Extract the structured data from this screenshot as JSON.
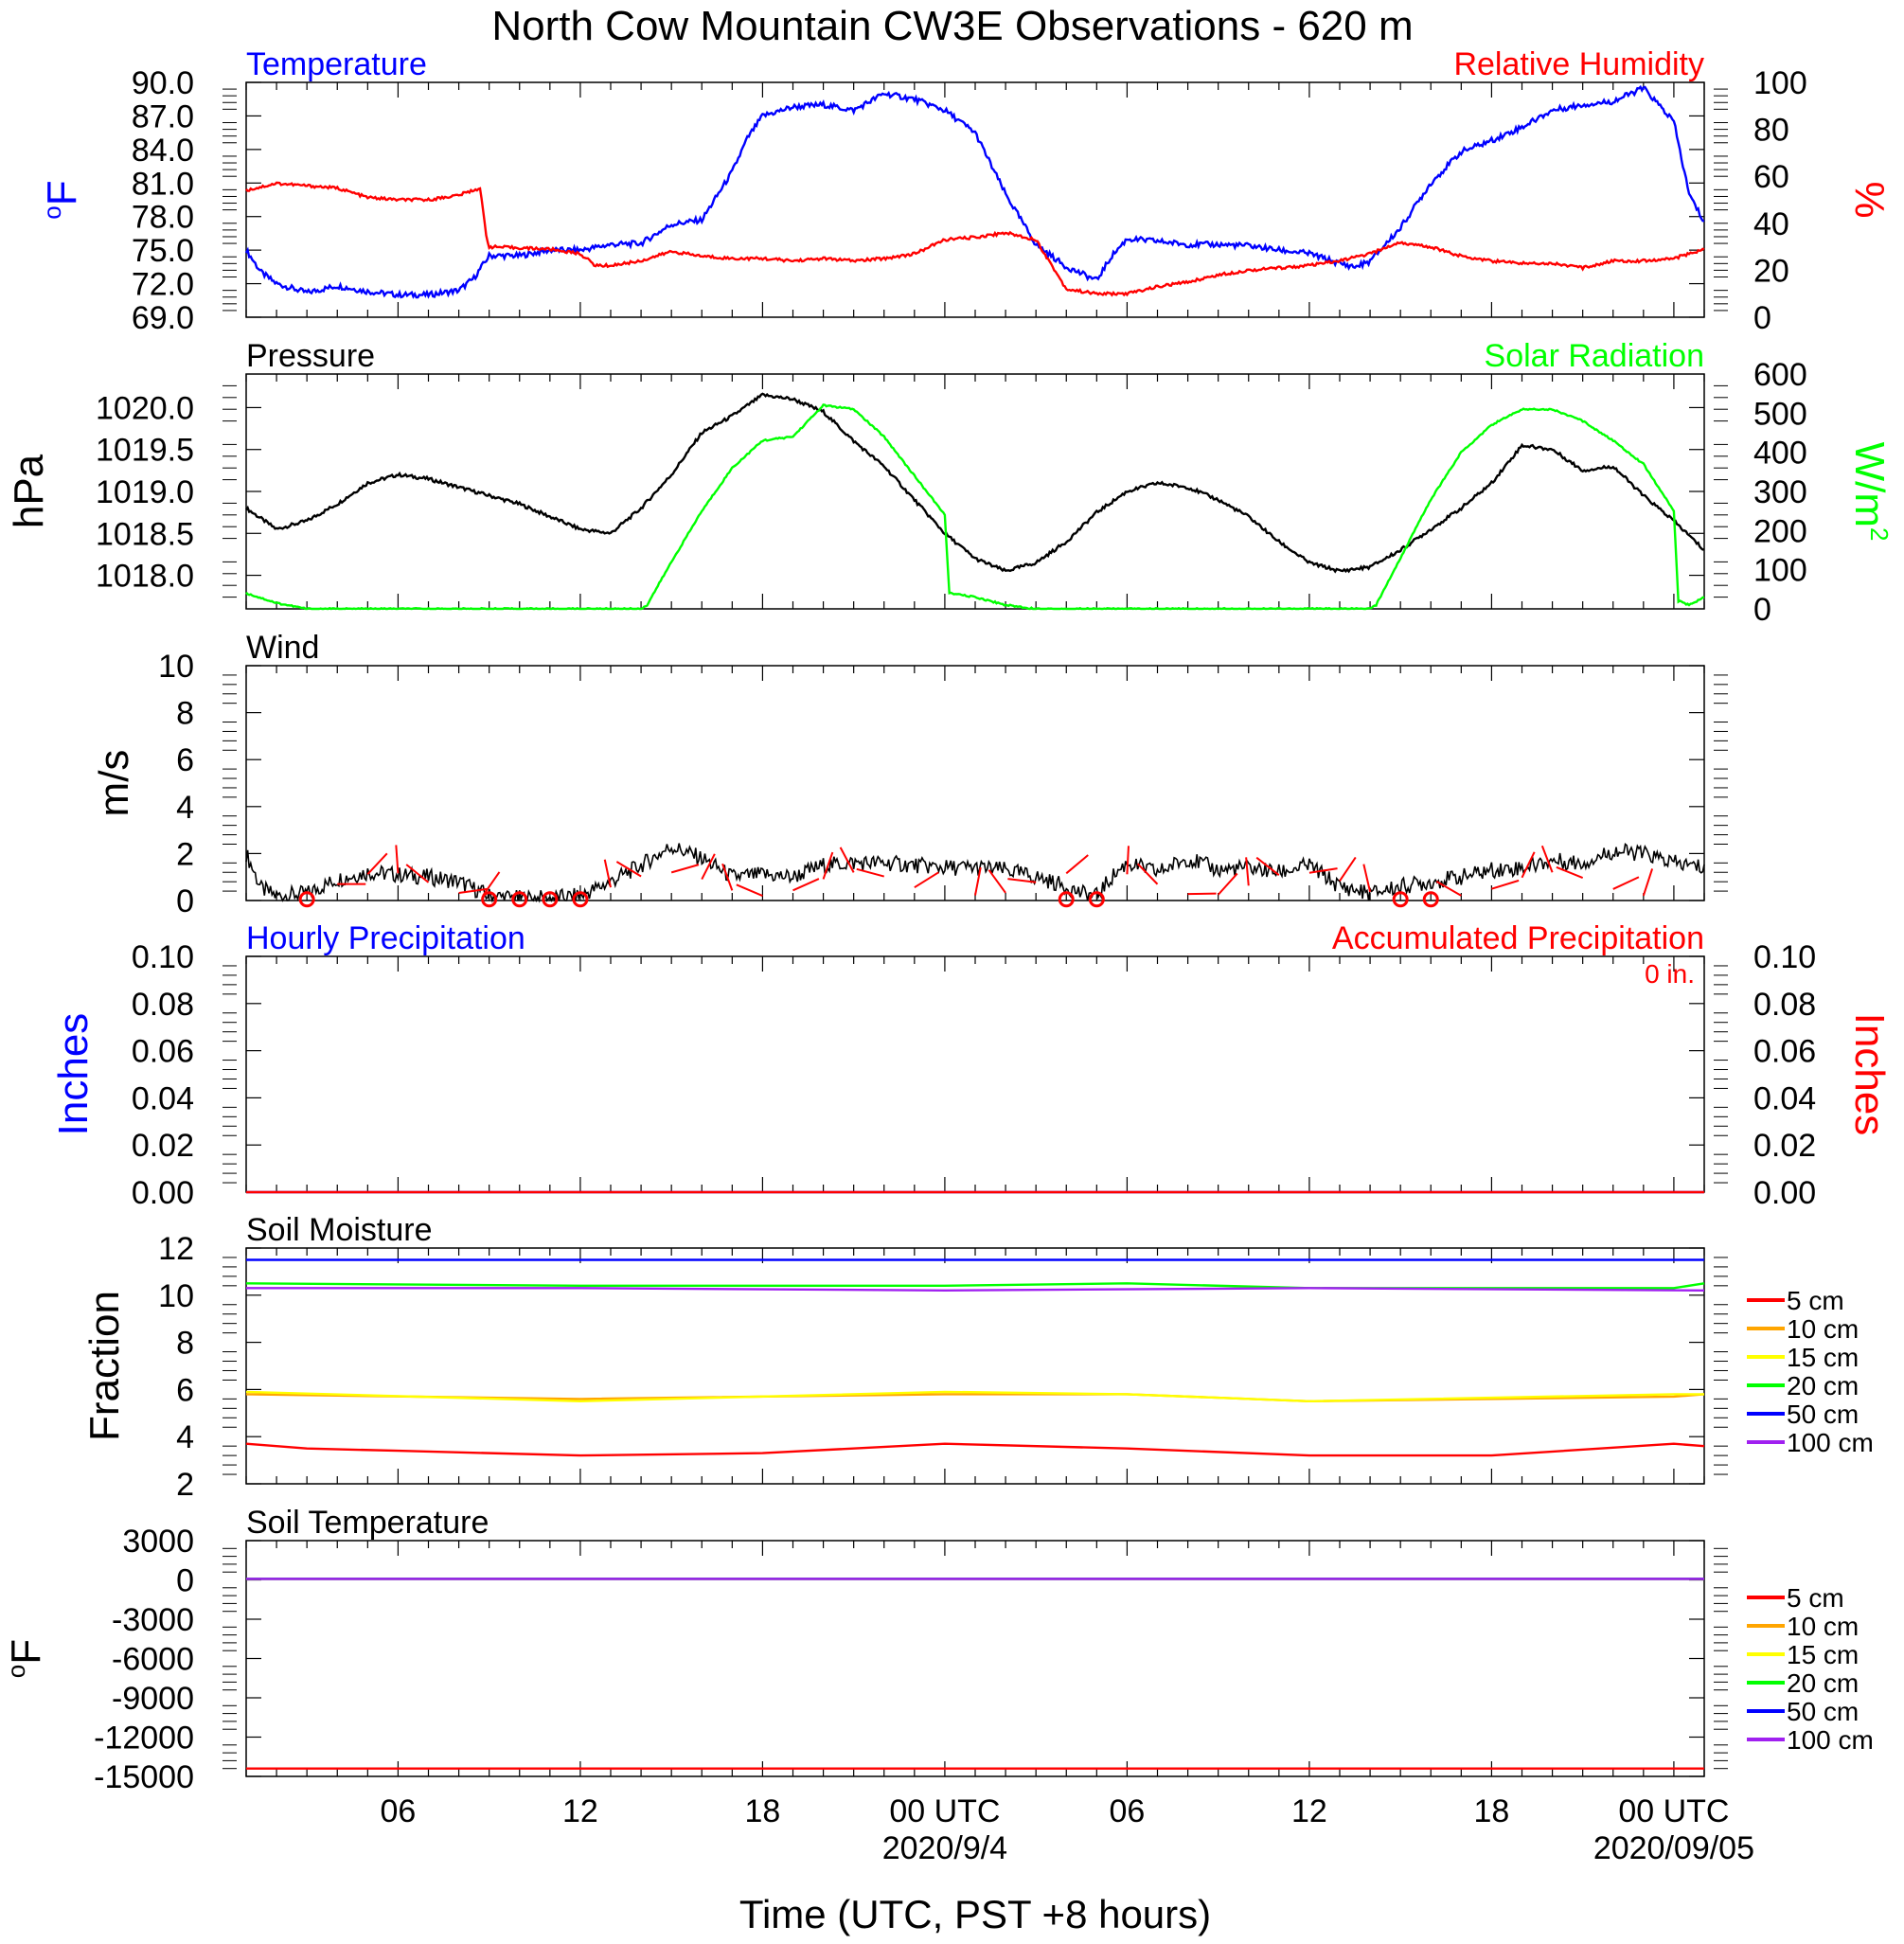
{
  "title": "North Cow Mountain CW3E Observations - 620 m",
  "time_axis": {
    "tick_labels": [
      "06",
      "12",
      "18",
      "00 UTC",
      "06",
      "12",
      "18",
      "00 UTC"
    ],
    "tick_hours": [
      6,
      12,
      18,
      24,
      30,
      36,
      42,
      48
    ],
    "date_labels": [
      {
        "text": "2020/9/4",
        "hour": 24
      },
      {
        "text": "2020/09/05",
        "hour": 48
      }
    ],
    "range_hours": [
      1,
      49
    ],
    "xlabel": "Time (UTC, PST +8 hours)"
  },
  "colors": {
    "temperature": "#0000ff",
    "humidity": "#ff0000",
    "pressure": "#000000",
    "solar": "#00ff00",
    "wind": "#000000",
    "barbs": "#ff0000",
    "precip_hourly": "#0000ff",
    "precip_accum": "#ff0000",
    "depth_5cm": "#ff0000",
    "depth_10cm": "#ffa500",
    "depth_15cm": "#ffff00",
    "depth_20cm": "#00ff00",
    "depth_50cm": "#0000ff",
    "depth_100cm": "#a020f0"
  },
  "chart_data": [
    {
      "type": "line",
      "panel": "temperature_humidity",
      "left_title": "Temperature",
      "right_title": "Relative Humidity",
      "ylabel_left": "oF",
      "ylabel_right": "%",
      "ylim_left": [
        69,
        90
      ],
      "ylim_right": [
        0,
        100
      ],
      "yticks_left": [
        "90.0",
        "87.0",
        "84.0",
        "81.0",
        "78.0",
        "75.0",
        "72.0",
        "69.0"
      ],
      "yticks_right": [
        "100",
        "80",
        "60",
        "40",
        "20",
        "0"
      ],
      "series": [
        {
          "name": "Temperature",
          "axis": "left",
          "color_key": "temperature",
          "x": [
            1,
            1.5,
            2,
            3,
            4,
            5,
            6,
            7,
            8,
            8.5,
            9,
            10,
            11,
            12,
            13,
            14,
            15,
            16,
            17,
            17.5,
            18,
            19,
            20,
            21,
            22,
            23,
            24,
            25,
            26,
            27,
            28,
            29,
            29.5,
            30,
            31,
            32,
            33,
            34,
            35,
            36,
            37,
            37.5,
            38,
            39,
            40,
            41,
            42,
            43,
            44,
            45,
            46,
            47,
            48,
            48.5,
            49
          ],
          "y": [
            75,
            73,
            72,
            71.2,
            71.8,
            71.3,
            71,
            71,
            71.4,
            72.5,
            74.5,
            74.5,
            75,
            75,
            75.5,
            75.6,
            77.3,
            77.7,
            82,
            85,
            87,
            87.8,
            88,
            87.5,
            89,
            88.5,
            87.5,
            85.5,
            80,
            75.5,
            73.5,
            72.3,
            74.5,
            76,
            75.8,
            75.5,
            75.5,
            75.4,
            75,
            74.7,
            73.8,
            73.5,
            74,
            77,
            81,
            83.8,
            84.8,
            86,
            87.5,
            88,
            88.3,
            89.5,
            86.5,
            80,
            77.5
          ]
        },
        {
          "name": "Relative Humidity",
          "axis": "right",
          "color_key": "humidity",
          "x": [
            1,
            2,
            3,
            4,
            5,
            6,
            7,
            8,
            8.7,
            8.9,
            9,
            10,
            11,
            11.5,
            12,
            12.5,
            13,
            14,
            15,
            16,
            17,
            18,
            19,
            20,
            21,
            22,
            23,
            24,
            25,
            26,
            27,
            28,
            29,
            30,
            31,
            32,
            33,
            34,
            35,
            36,
            37,
            38,
            39,
            39.3,
            40,
            41,
            42,
            43,
            44,
            45,
            46,
            47,
            48,
            49
          ],
          "y": [
            54,
            57,
            56,
            55,
            51,
            50,
            50,
            52,
            55,
            35,
            30,
            29.5,
            29,
            28,
            27,
            22,
            22,
            24,
            28,
            26,
            25,
            25,
            24,
            25,
            24,
            25,
            27,
            33,
            34,
            36,
            33,
            12,
            10,
            10,
            13,
            15,
            18,
            20,
            21,
            22,
            24,
            27,
            32,
            31,
            30,
            26,
            24,
            23,
            23,
            21,
            24,
            24,
            25,
            29
          ]
        }
      ]
    },
    {
      "type": "line",
      "panel": "pressure_solar",
      "left_title": "Pressure",
      "right_title": "Solar Radiation",
      "ylabel_left": "hPa",
      "ylabel_right": "W/m2",
      "ylim_left": [
        1017.6,
        1020.4
      ],
      "ylim_right": [
        0,
        600
      ],
      "yticks_left": [
        "1020.0",
        "1019.5",
        "1019.0",
        "1018.5",
        "1018.0"
      ],
      "yticks_right": [
        "600",
        "500",
        "400",
        "300",
        "200",
        "100",
        "0"
      ],
      "series": [
        {
          "name": "Pressure",
          "axis": "left",
          "color_key": "pressure",
          "x": [
            1,
            2,
            3,
            4,
            5,
            6,
            7,
            8,
            9,
            10,
            11,
            12,
            13,
            14,
            15,
            16,
            17,
            18,
            19,
            20,
            21,
            22,
            23,
            24,
            25,
            26,
            27,
            28,
            29,
            30,
            31,
            32,
            33,
            34,
            35,
            36,
            37,
            38,
            39,
            40,
            41,
            42,
            43,
            44,
            45,
            46,
            47,
            48,
            49
          ],
          "y": [
            1018.8,
            1018.55,
            1018.65,
            1018.85,
            1019.1,
            1019.2,
            1019.15,
            1019.05,
            1018.95,
            1018.85,
            1018.7,
            1018.55,
            1018.5,
            1018.8,
            1019.2,
            1019.7,
            1019.9,
            1020.15,
            1020.1,
            1019.95,
            1019.6,
            1019.3,
            1018.9,
            1018.5,
            1018.2,
            1018.05,
            1018.15,
            1018.4,
            1018.75,
            1019.0,
            1019.1,
            1019.05,
            1018.9,
            1018.7,
            1018.4,
            1018.15,
            1018.05,
            1018.1,
            1018.3,
            1018.55,
            1018.8,
            1019.1,
            1019.55,
            1019.5,
            1019.25,
            1019.3,
            1018.95,
            1018.65,
            1018.3
          ]
        },
        {
          "name": "Solar Radiation",
          "axis": "right",
          "color_key": "solar",
          "x": [
            1,
            2,
            3,
            14,
            14.2,
            15,
            16,
            17,
            18,
            19,
            20,
            21,
            22,
            23,
            24,
            24.15,
            25,
            26,
            27,
            38,
            38.2,
            39,
            40,
            41,
            42,
            43,
            44,
            45,
            46,
            47,
            48,
            48.15,
            48.5,
            49
          ],
          "y": [
            40,
            15,
            0,
            0,
            10,
            120,
            250,
            360,
            430,
            440,
            520,
            510,
            440,
            340,
            240,
            40,
            30,
            10,
            0,
            0,
            10,
            130,
            280,
            400,
            470,
            510,
            510,
            480,
            430,
            370,
            250,
            20,
            10,
            30
          ]
        }
      ]
    },
    {
      "type": "line",
      "panel": "wind",
      "left_title": "Wind",
      "ylabel_left": "m/s",
      "ylim_left": [
        0,
        10
      ],
      "yticks_left": [
        "10",
        "8",
        "6",
        "4",
        "2",
        "0"
      ],
      "series": [
        {
          "name": "Wind",
          "axis": "left",
          "color_key": "wind",
          "x": [
            1,
            1.5,
            2,
            3,
            4,
            5,
            6,
            7,
            8,
            9,
            10,
            11,
            12,
            13,
            14,
            15,
            16,
            17,
            18,
            19,
            20,
            21,
            22,
            23,
            24,
            25,
            26,
            27,
            28,
            28.5,
            29,
            29.5,
            30,
            31,
            32,
            33,
            34,
            35,
            36,
            37,
            38,
            39,
            40,
            41,
            42,
            43,
            44,
            45,
            46,
            47,
            48,
            49
          ],
          "y": [
            2,
            0.5,
            0.2,
            0.3,
            0.9,
            1.2,
            1.1,
            1.0,
            0.8,
            0.2,
            0.1,
            0.1,
            0.2,
            0.8,
            1.5,
            2.3,
            1.8,
            1.0,
            1.1,
            1.0,
            1.5,
            1.6,
            1.6,
            1.5,
            1.4,
            1.4,
            1.3,
            1.0,
            0.6,
            0.3,
            0.2,
            1.0,
            1.6,
            1.2,
            1.8,
            1.3,
            1.4,
            1.2,
            1.5,
            0.6,
            0.3,
            0.6,
            0.8,
            1.0,
            1.3,
            1.4,
            1.7,
            1.6,
            2.1,
            2.0,
            1.6,
            1.4
          ]
        }
      ],
      "calm_markers_hours": [
        3,
        9,
        10,
        11,
        12,
        28,
        29,
        39,
        40
      ]
    },
    {
      "type": "line",
      "panel": "precipitation",
      "left_title": "Hourly Precipitation",
      "right_title": "Accumulated Precipitation",
      "annotation": "0 in.",
      "ylabel_left": "Inches",
      "ylabel_right": "Inches",
      "ylim_left": [
        0,
        0.1
      ],
      "ylim_right": [
        0,
        0.1
      ],
      "yticks_left": [
        "0.10",
        "0.08",
        "0.06",
        "0.04",
        "0.02",
        "0.00"
      ],
      "yticks_right": [
        "0.10",
        "0.08",
        "0.06",
        "0.04",
        "0.02",
        "0.00"
      ],
      "series": [
        {
          "name": "Hourly Precipitation",
          "axis": "left",
          "color_key": "precip_hourly",
          "x": [
            1,
            49
          ],
          "y": [
            0,
            0
          ]
        },
        {
          "name": "Accumulated Precipitation",
          "axis": "right",
          "color_key": "precip_accum",
          "x": [
            1,
            49
          ],
          "y": [
            0,
            0
          ]
        }
      ]
    },
    {
      "type": "line",
      "panel": "soil_moisture",
      "left_title": "Soil Moisture",
      "ylabel_left": "Fraction",
      "ylim_left": [
        2,
        12
      ],
      "yticks_left": [
        "12",
        "10",
        "8",
        "6",
        "4",
        "2"
      ],
      "legend": "right",
      "series": [
        {
          "name": "5 cm",
          "color_key": "depth_5cm",
          "x": [
            1,
            3,
            6,
            12,
            18,
            24,
            30,
            36,
            42,
            48,
            49
          ],
          "y": [
            3.7,
            3.5,
            3.4,
            3.2,
            3.3,
            3.7,
            3.5,
            3.2,
            3.2,
            3.7,
            3.6
          ]
        },
        {
          "name": "10 cm",
          "color_key": "depth_10cm",
          "x": [
            1,
            12,
            24,
            30,
            36,
            48,
            49
          ],
          "y": [
            5.8,
            5.6,
            5.8,
            5.8,
            5.5,
            5.7,
            5.8
          ]
        },
        {
          "name": "15 cm",
          "color_key": "depth_15cm",
          "x": [
            1,
            12,
            24,
            30,
            36,
            48,
            49
          ],
          "y": [
            5.9,
            5.5,
            5.9,
            5.8,
            5.5,
            5.8,
            5.8
          ]
        },
        {
          "name": "20 cm",
          "color_key": "depth_20cm",
          "x": [
            1,
            12,
            24,
            30,
            36,
            48,
            49
          ],
          "y": [
            10.5,
            10.4,
            10.4,
            10.5,
            10.3,
            10.3,
            10.5
          ]
        },
        {
          "name": "50 cm",
          "color_key": "depth_50cm",
          "x": [
            1,
            49
          ],
          "y": [
            11.5,
            11.5
          ]
        },
        {
          "name": "100 cm",
          "color_key": "depth_100cm",
          "x": [
            1,
            12,
            24,
            36,
            49
          ],
          "y": [
            10.3,
            10.3,
            10.2,
            10.3,
            10.2
          ]
        }
      ]
    },
    {
      "type": "line",
      "panel": "soil_temperature",
      "left_title": "Soil Temperature",
      "ylabel_left": "oF",
      "ylim_left": [
        -15000,
        3000
      ],
      "yticks_left": [
        "3000",
        "0",
        "-3000",
        "-6000",
        "-9000",
        "-12000",
        "-15000"
      ],
      "legend": "right",
      "series": [
        {
          "name": "5 cm",
          "color_key": "depth_5cm",
          "x": [
            1,
            49
          ],
          "y": [
            -14400,
            -14400
          ]
        },
        {
          "name": "10 cm",
          "color_key": "depth_10cm",
          "x": [
            1,
            49
          ],
          "y": [
            80,
            80
          ]
        },
        {
          "name": "15 cm",
          "color_key": "depth_15cm",
          "x": [
            1,
            49
          ],
          "y": [
            80,
            80
          ]
        },
        {
          "name": "20 cm",
          "color_key": "depth_20cm",
          "x": [
            1,
            49
          ],
          "y": [
            80,
            80
          ]
        },
        {
          "name": "50 cm",
          "color_key": "depth_50cm",
          "x": [
            1,
            49
          ],
          "y": [
            80,
            80
          ]
        },
        {
          "name": "100 cm",
          "color_key": "depth_100cm",
          "x": [
            1,
            49
          ],
          "y": [
            80,
            80
          ]
        }
      ]
    }
  ]
}
